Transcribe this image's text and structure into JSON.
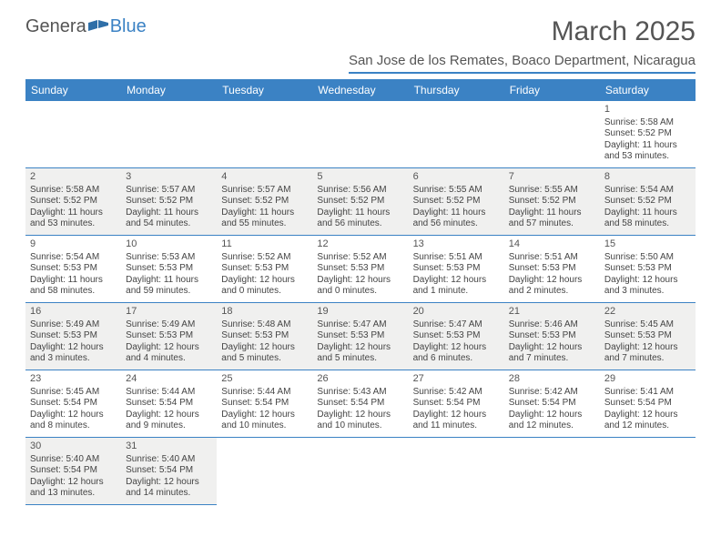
{
  "brand": {
    "part1": "Genera",
    "part2": "Blue"
  },
  "title": "March 2025",
  "location": "San Jose de los Remates, Boaco Department, Nicaragua",
  "colors": {
    "accent": "#3b82c4",
    "shaded_bg": "#f0f0ef",
    "text": "#444444",
    "title_text": "#555555"
  },
  "weekdays": [
    "Sunday",
    "Monday",
    "Tuesday",
    "Wednesday",
    "Thursday",
    "Friday",
    "Saturday"
  ],
  "leading_blanks": 6,
  "days": [
    {
      "n": 1,
      "sunrise": "Sunrise: 5:58 AM",
      "sunset": "Sunset: 5:52 PM",
      "daylight": "Daylight: 11 hours and 53 minutes."
    },
    {
      "n": 2,
      "sunrise": "Sunrise: 5:58 AM",
      "sunset": "Sunset: 5:52 PM",
      "daylight": "Daylight: 11 hours and 53 minutes."
    },
    {
      "n": 3,
      "sunrise": "Sunrise: 5:57 AM",
      "sunset": "Sunset: 5:52 PM",
      "daylight": "Daylight: 11 hours and 54 minutes."
    },
    {
      "n": 4,
      "sunrise": "Sunrise: 5:57 AM",
      "sunset": "Sunset: 5:52 PM",
      "daylight": "Daylight: 11 hours and 55 minutes."
    },
    {
      "n": 5,
      "sunrise": "Sunrise: 5:56 AM",
      "sunset": "Sunset: 5:52 PM",
      "daylight": "Daylight: 11 hours and 56 minutes."
    },
    {
      "n": 6,
      "sunrise": "Sunrise: 5:55 AM",
      "sunset": "Sunset: 5:52 PM",
      "daylight": "Daylight: 11 hours and 56 minutes."
    },
    {
      "n": 7,
      "sunrise": "Sunrise: 5:55 AM",
      "sunset": "Sunset: 5:52 PM",
      "daylight": "Daylight: 11 hours and 57 minutes."
    },
    {
      "n": 8,
      "sunrise": "Sunrise: 5:54 AM",
      "sunset": "Sunset: 5:52 PM",
      "daylight": "Daylight: 11 hours and 58 minutes."
    },
    {
      "n": 9,
      "sunrise": "Sunrise: 5:54 AM",
      "sunset": "Sunset: 5:53 PM",
      "daylight": "Daylight: 11 hours and 58 minutes."
    },
    {
      "n": 10,
      "sunrise": "Sunrise: 5:53 AM",
      "sunset": "Sunset: 5:53 PM",
      "daylight": "Daylight: 11 hours and 59 minutes."
    },
    {
      "n": 11,
      "sunrise": "Sunrise: 5:52 AM",
      "sunset": "Sunset: 5:53 PM",
      "daylight": "Daylight: 12 hours and 0 minutes."
    },
    {
      "n": 12,
      "sunrise": "Sunrise: 5:52 AM",
      "sunset": "Sunset: 5:53 PM",
      "daylight": "Daylight: 12 hours and 0 minutes."
    },
    {
      "n": 13,
      "sunrise": "Sunrise: 5:51 AM",
      "sunset": "Sunset: 5:53 PM",
      "daylight": "Daylight: 12 hours and 1 minute."
    },
    {
      "n": 14,
      "sunrise": "Sunrise: 5:51 AM",
      "sunset": "Sunset: 5:53 PM",
      "daylight": "Daylight: 12 hours and 2 minutes."
    },
    {
      "n": 15,
      "sunrise": "Sunrise: 5:50 AM",
      "sunset": "Sunset: 5:53 PM",
      "daylight": "Daylight: 12 hours and 3 minutes."
    },
    {
      "n": 16,
      "sunrise": "Sunrise: 5:49 AM",
      "sunset": "Sunset: 5:53 PM",
      "daylight": "Daylight: 12 hours and 3 minutes."
    },
    {
      "n": 17,
      "sunrise": "Sunrise: 5:49 AM",
      "sunset": "Sunset: 5:53 PM",
      "daylight": "Daylight: 12 hours and 4 minutes."
    },
    {
      "n": 18,
      "sunrise": "Sunrise: 5:48 AM",
      "sunset": "Sunset: 5:53 PM",
      "daylight": "Daylight: 12 hours and 5 minutes."
    },
    {
      "n": 19,
      "sunrise": "Sunrise: 5:47 AM",
      "sunset": "Sunset: 5:53 PM",
      "daylight": "Daylight: 12 hours and 5 minutes."
    },
    {
      "n": 20,
      "sunrise": "Sunrise: 5:47 AM",
      "sunset": "Sunset: 5:53 PM",
      "daylight": "Daylight: 12 hours and 6 minutes."
    },
    {
      "n": 21,
      "sunrise": "Sunrise: 5:46 AM",
      "sunset": "Sunset: 5:53 PM",
      "daylight": "Daylight: 12 hours and 7 minutes."
    },
    {
      "n": 22,
      "sunrise": "Sunrise: 5:45 AM",
      "sunset": "Sunset: 5:53 PM",
      "daylight": "Daylight: 12 hours and 7 minutes."
    },
    {
      "n": 23,
      "sunrise": "Sunrise: 5:45 AM",
      "sunset": "Sunset: 5:54 PM",
      "daylight": "Daylight: 12 hours and 8 minutes."
    },
    {
      "n": 24,
      "sunrise": "Sunrise: 5:44 AM",
      "sunset": "Sunset: 5:54 PM",
      "daylight": "Daylight: 12 hours and 9 minutes."
    },
    {
      "n": 25,
      "sunrise": "Sunrise: 5:44 AM",
      "sunset": "Sunset: 5:54 PM",
      "daylight": "Daylight: 12 hours and 10 minutes."
    },
    {
      "n": 26,
      "sunrise": "Sunrise: 5:43 AM",
      "sunset": "Sunset: 5:54 PM",
      "daylight": "Daylight: 12 hours and 10 minutes."
    },
    {
      "n": 27,
      "sunrise": "Sunrise: 5:42 AM",
      "sunset": "Sunset: 5:54 PM",
      "daylight": "Daylight: 12 hours and 11 minutes."
    },
    {
      "n": 28,
      "sunrise": "Sunrise: 5:42 AM",
      "sunset": "Sunset: 5:54 PM",
      "daylight": "Daylight: 12 hours and 12 minutes."
    },
    {
      "n": 29,
      "sunrise": "Sunrise: 5:41 AM",
      "sunset": "Sunset: 5:54 PM",
      "daylight": "Daylight: 12 hours and 12 minutes."
    },
    {
      "n": 30,
      "sunrise": "Sunrise: 5:40 AM",
      "sunset": "Sunset: 5:54 PM",
      "daylight": "Daylight: 12 hours and 13 minutes."
    },
    {
      "n": 31,
      "sunrise": "Sunrise: 5:40 AM",
      "sunset": "Sunset: 5:54 PM",
      "daylight": "Daylight: 12 hours and 14 minutes."
    }
  ]
}
